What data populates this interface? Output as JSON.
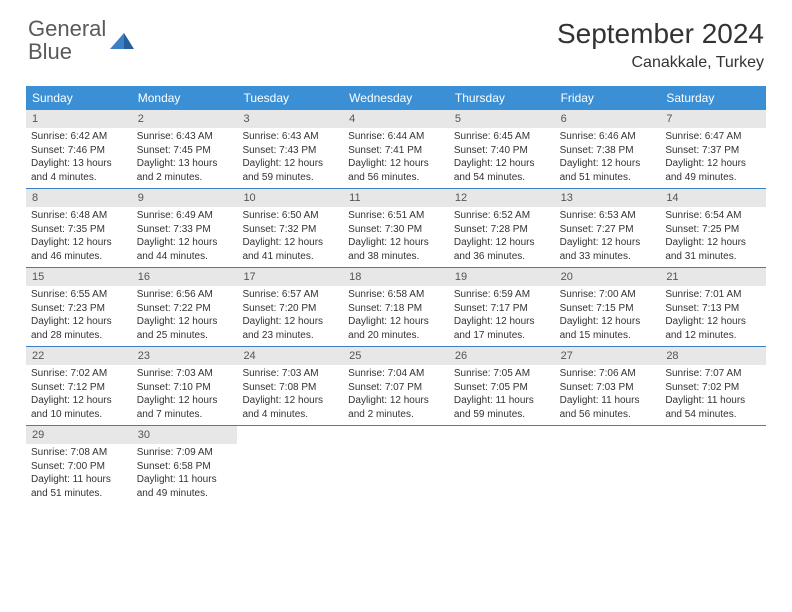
{
  "logo": {
    "general": "General",
    "blue": "Blue"
  },
  "title": "September 2024",
  "location": "Canakkale, Turkey",
  "colors": {
    "header_bg": "#3b8fd4",
    "row_border": "#3b7fc4",
    "daynum_bg": "#e7e7e7",
    "text": "#333333"
  },
  "dayNames": [
    "Sunday",
    "Monday",
    "Tuesday",
    "Wednesday",
    "Thursday",
    "Friday",
    "Saturday"
  ],
  "weeks": [
    [
      {
        "n": "1",
        "sr": "6:42 AM",
        "ss": "7:46 PM",
        "dl": "13 hours and 4 minutes."
      },
      {
        "n": "2",
        "sr": "6:43 AM",
        "ss": "7:45 PM",
        "dl": "13 hours and 2 minutes."
      },
      {
        "n": "3",
        "sr": "6:43 AM",
        "ss": "7:43 PM",
        "dl": "12 hours and 59 minutes."
      },
      {
        "n": "4",
        "sr": "6:44 AM",
        "ss": "7:41 PM",
        "dl": "12 hours and 56 minutes."
      },
      {
        "n": "5",
        "sr": "6:45 AM",
        "ss": "7:40 PM",
        "dl": "12 hours and 54 minutes."
      },
      {
        "n": "6",
        "sr": "6:46 AM",
        "ss": "7:38 PM",
        "dl": "12 hours and 51 minutes."
      },
      {
        "n": "7",
        "sr": "6:47 AM",
        "ss": "7:37 PM",
        "dl": "12 hours and 49 minutes."
      }
    ],
    [
      {
        "n": "8",
        "sr": "6:48 AM",
        "ss": "7:35 PM",
        "dl": "12 hours and 46 minutes."
      },
      {
        "n": "9",
        "sr": "6:49 AM",
        "ss": "7:33 PM",
        "dl": "12 hours and 44 minutes."
      },
      {
        "n": "10",
        "sr": "6:50 AM",
        "ss": "7:32 PM",
        "dl": "12 hours and 41 minutes."
      },
      {
        "n": "11",
        "sr": "6:51 AM",
        "ss": "7:30 PM",
        "dl": "12 hours and 38 minutes."
      },
      {
        "n": "12",
        "sr": "6:52 AM",
        "ss": "7:28 PM",
        "dl": "12 hours and 36 minutes."
      },
      {
        "n": "13",
        "sr": "6:53 AM",
        "ss": "7:27 PM",
        "dl": "12 hours and 33 minutes."
      },
      {
        "n": "14",
        "sr": "6:54 AM",
        "ss": "7:25 PM",
        "dl": "12 hours and 31 minutes."
      }
    ],
    [
      {
        "n": "15",
        "sr": "6:55 AM",
        "ss": "7:23 PM",
        "dl": "12 hours and 28 minutes."
      },
      {
        "n": "16",
        "sr": "6:56 AM",
        "ss": "7:22 PM",
        "dl": "12 hours and 25 minutes."
      },
      {
        "n": "17",
        "sr": "6:57 AM",
        "ss": "7:20 PM",
        "dl": "12 hours and 23 minutes."
      },
      {
        "n": "18",
        "sr": "6:58 AM",
        "ss": "7:18 PM",
        "dl": "12 hours and 20 minutes."
      },
      {
        "n": "19",
        "sr": "6:59 AM",
        "ss": "7:17 PM",
        "dl": "12 hours and 17 minutes."
      },
      {
        "n": "20",
        "sr": "7:00 AM",
        "ss": "7:15 PM",
        "dl": "12 hours and 15 minutes."
      },
      {
        "n": "21",
        "sr": "7:01 AM",
        "ss": "7:13 PM",
        "dl": "12 hours and 12 minutes."
      }
    ],
    [
      {
        "n": "22",
        "sr": "7:02 AM",
        "ss": "7:12 PM",
        "dl": "12 hours and 10 minutes."
      },
      {
        "n": "23",
        "sr": "7:03 AM",
        "ss": "7:10 PM",
        "dl": "12 hours and 7 minutes."
      },
      {
        "n": "24",
        "sr": "7:03 AM",
        "ss": "7:08 PM",
        "dl": "12 hours and 4 minutes."
      },
      {
        "n": "25",
        "sr": "7:04 AM",
        "ss": "7:07 PM",
        "dl": "12 hours and 2 minutes."
      },
      {
        "n": "26",
        "sr": "7:05 AM",
        "ss": "7:05 PM",
        "dl": "11 hours and 59 minutes."
      },
      {
        "n": "27",
        "sr": "7:06 AM",
        "ss": "7:03 PM",
        "dl": "11 hours and 56 minutes."
      },
      {
        "n": "28",
        "sr": "7:07 AM",
        "ss": "7:02 PM",
        "dl": "11 hours and 54 minutes."
      }
    ],
    [
      {
        "n": "29",
        "sr": "7:08 AM",
        "ss": "7:00 PM",
        "dl": "11 hours and 51 minutes."
      },
      {
        "n": "30",
        "sr": "7:09 AM",
        "ss": "6:58 PM",
        "dl": "11 hours and 49 minutes."
      },
      null,
      null,
      null,
      null,
      null
    ]
  ],
  "labels": {
    "sunrise": "Sunrise:",
    "sunset": "Sunset:",
    "daylight": "Daylight:"
  }
}
